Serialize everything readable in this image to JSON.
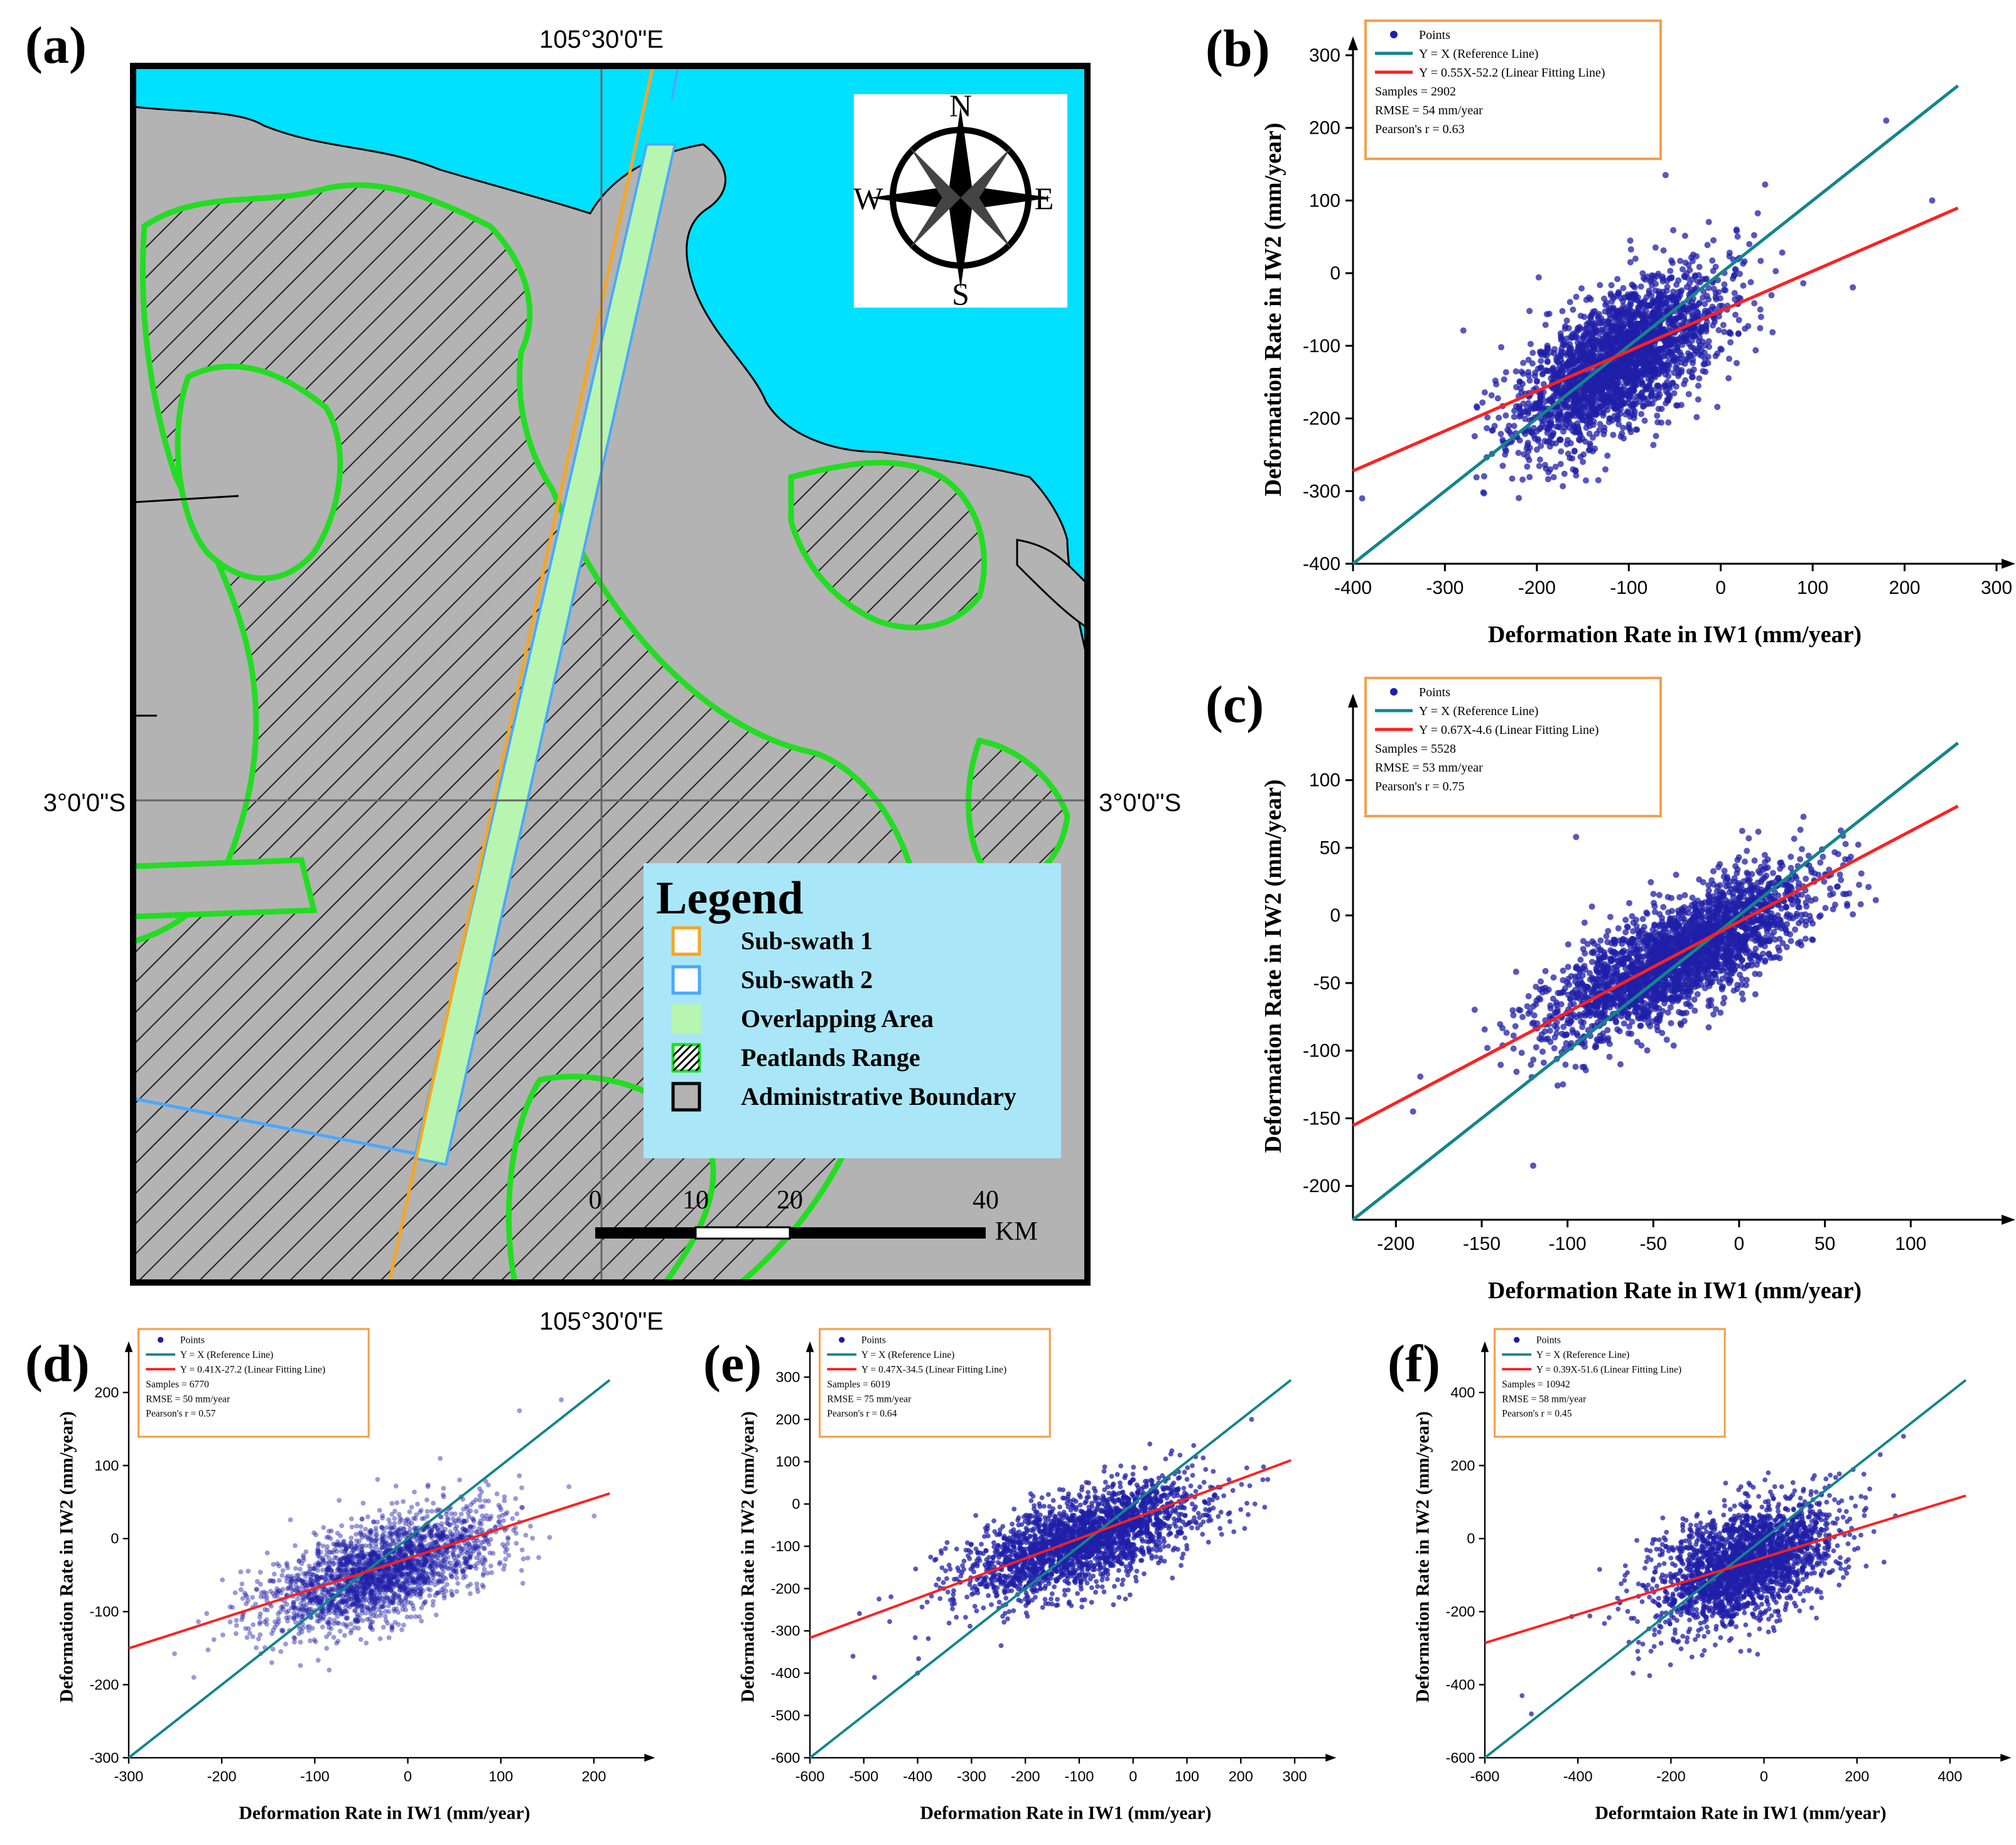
{
  "map": {
    "label": "(a)",
    "lon_label": "105°30'0\"E",
    "lat_label": "3°0'0\"S",
    "compass": {
      "n": "N",
      "s": "S",
      "e": "E",
      "w": "W"
    },
    "legend": {
      "title": "Legend",
      "items": [
        {
          "label": "Sub-swath 1",
          "swatch": "#f5a623",
          "fill": "#ffffff",
          "style": "outline"
        },
        {
          "label": "Sub-swath 2",
          "swatch": "#4aa8ff",
          "fill": "#ffffff",
          "style": "outline"
        },
        {
          "label": "Overlapping Area",
          "swatch": "#b7f5b0",
          "fill": "#b7f5b0",
          "style": "solid"
        },
        {
          "label": "Peatlands Range",
          "swatch": "#22dd22",
          "fill": "#ffffff",
          "style": "hatch"
        },
        {
          "label": "Administrative Boundary",
          "swatch": "#000000",
          "fill": "#b3b3b3",
          "style": "outline"
        }
      ]
    },
    "scale": {
      "ticks": [
        "0",
        "10",
        "20",
        "40"
      ],
      "unit": "KM"
    },
    "colors": {
      "sea": "#00e0ff",
      "land": "#b3b3b3",
      "peat": "#22dd22",
      "overlap": "#b7f5b0",
      "sub1": "#f5a623",
      "sub2": "#4aa8ff",
      "legend_bg": "#a9e7f8"
    }
  },
  "chart_data": [
    {
      "id": "b",
      "label": "(b)",
      "type": "scatter",
      "xlabel": "Deformation Rate in IW1 (mm/year)",
      "ylabel": "Deformation Rate in IW2 (mm/year)",
      "xlim": [
        -400,
        300
      ],
      "ylim": [
        -400,
        300
      ],
      "xticks": [
        -400,
        -300,
        -200,
        -100,
        0,
        100,
        200,
        300
      ],
      "yticks": [
        -400,
        -300,
        -200,
        -100,
        0,
        100,
        200,
        300
      ],
      "fit": {
        "slope": 0.55,
        "intercept": -52.2
      },
      "cluster": {
        "cx": -110,
        "cy": -120,
        "sx": 55,
        "sy": 60,
        "rho": 0.63,
        "seed": 11,
        "outliers": [
          [
            -390,
            -310
          ],
          [
            230,
            100
          ],
          [
            180,
            210
          ],
          [
            -60,
            135
          ]
        ]
      },
      "legend": [
        "Points",
        "Y = X (Reference Line)",
        "Y = 0.55X-52.2 (Linear Fitting Line)"
      ],
      "stats": [
        "Samples = 2902",
        "RMSE = 54 mm/year",
        "Pearson's r = 0.63"
      ],
      "n_points": 2902
    },
    {
      "id": "c",
      "label": "(c)",
      "type": "scatter",
      "xlabel": "Deformation Rate in IW1 (mm/year)",
      "ylabel": "Deformation Rate in IW2 (mm/year)",
      "xlim": [
        -225,
        150
      ],
      "ylim": [
        -225,
        150
      ],
      "xticks": [
        -200,
        -150,
        -100,
        -50,
        0,
        50,
        100
      ],
      "yticks": [
        -200,
        -150,
        -100,
        -50,
        0,
        50,
        100
      ],
      "fit": {
        "slope": 0.67,
        "intercept": -4.6
      },
      "cluster": {
        "cx": -35,
        "cy": -30,
        "sx": 38,
        "sy": 30,
        "rho": 0.75,
        "seed": 23,
        "outliers": [
          [
            -190,
            -145
          ],
          [
            -120,
            -185
          ],
          [
            -95,
            58
          ]
        ]
      },
      "legend": [
        "Points",
        "Y = X (Reference Line)",
        "Y = 0.67X-4.6 (Linear Fitting Line)"
      ],
      "stats": [
        "Samples = 5528",
        "RMSE = 53 mm/year",
        "Pearson's r = 0.75"
      ],
      "n_points": 5528
    },
    {
      "id": "d",
      "label": "(d)",
      "type": "scatter",
      "xlabel": "Deformation Rate in IW1 (mm/year)",
      "ylabel": "Deformation Rate in IW2 (mm/year)",
      "xlim": [
        -300,
        250
      ],
      "ylim": [
        -300,
        250
      ],
      "xticks": [
        -300,
        -200,
        -100,
        0,
        100,
        200
      ],
      "yticks": [
        -300,
        -200,
        -100,
        0,
        100,
        200
      ],
      "fit": {
        "slope": 0.41,
        "intercept": -27.2
      },
      "cluster": {
        "cx": -30,
        "cy": -45,
        "sx": 60,
        "sy": 40,
        "rho": 0.57,
        "seed": 37,
        "outliers": [
          [
            165,
            190
          ],
          [
            120,
            175
          ],
          [
            -230,
            -190
          ]
        ]
      },
      "legend": [
        "Points",
        "Y = X (Reference Line)",
        "Y = 0.41X-27.2 (Linear Fitting Line)"
      ],
      "stats": [
        "Samples = 6770",
        "RMSE = 50 mm/year",
        "Pearson's r = 0.57"
      ],
      "n_points": 6770
    },
    {
      "id": "e",
      "label": "(e)",
      "type": "scatter",
      "xlabel": "Deformation Rate in IW1 (mm/year)",
      "ylabel": "Deformation Rate in IW2 (mm/year)",
      "xlim": [
        -600,
        350
      ],
      "ylim": [
        -600,
        350
      ],
      "xticks": [
        -600,
        -500,
        -400,
        -300,
        -200,
        -100,
        0,
        100,
        200,
        300
      ],
      "yticks": [
        -600,
        -500,
        -400,
        -300,
        -200,
        -100,
        0,
        100,
        200,
        300
      ],
      "fit": {
        "slope": 0.47,
        "intercept": -34.5
      },
      "cluster": {
        "cx": -90,
        "cy": -85,
        "sx": 110,
        "sy": 70,
        "rho": 0.64,
        "seed": 53,
        "outliers": [
          [
            -520,
            -360
          ],
          [
            -480,
            -410
          ],
          [
            -400,
            -400
          ],
          [
            220,
            200
          ]
        ]
      },
      "legend": [
        "Points",
        "Y = X (Reference Line)",
        "Y = 0.47X-34.5 (Linear Fitting Line)"
      ],
      "stats": [
        "Samples = 6019",
        "RMSE = 75 mm/year",
        "Pearson's r = 0.64"
      ],
      "n_points": 6019
    },
    {
      "id": "f",
      "label": "(f)",
      "type": "scatter",
      "xlabel": "Deformtaion Rate in IW1 (mm/year)",
      "ylabel": "Deformation Rate in IW2 (mm/year)",
      "xlim": [
        -600,
        500
      ],
      "ylim": [
        -600,
        500
      ],
      "xticks": [
        -600,
        -400,
        -200,
        0,
        200,
        400
      ],
      "yticks": [
        -600,
        -400,
        -200,
        0,
        200,
        400
      ],
      "fit": {
        "slope": 0.39,
        "intercept": -51.6
      },
      "cluster": {
        "cx": -40,
        "cy": -70,
        "sx": 95,
        "sy": 85,
        "rho": 0.45,
        "seed": 71,
        "outliers": [
          [
            -520,
            -430
          ],
          [
            -500,
            -480
          ],
          [
            300,
            280
          ],
          [
            250,
            230
          ]
        ]
      },
      "legend": [
        "Points",
        "Y = X (Reference Line)",
        "Y = 0.39X-51.6 (Linear Fitting Line)"
      ],
      "stats": [
        "Samples = 10942",
        "RMSE = 58 mm/year",
        "Pearson's r = 0.45"
      ],
      "n_points": 10942
    }
  ],
  "colors": {
    "points": "#1f1fa8",
    "reference_line": "#12868a",
    "fit_line": "#ff2020",
    "legend_border": "#f5a04a"
  }
}
